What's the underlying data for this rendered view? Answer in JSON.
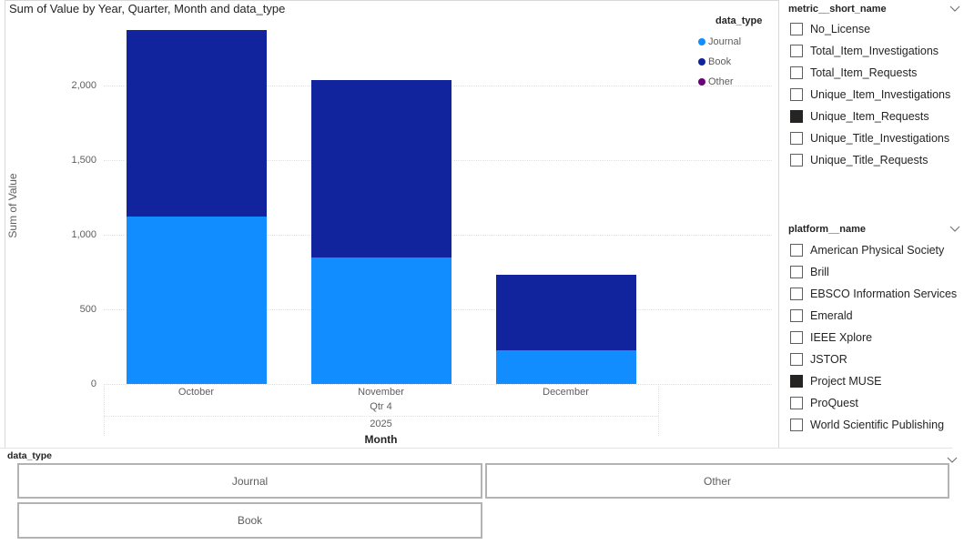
{
  "chart": {
    "title": "Sum of Value by Year, Quarter, Month and data_type",
    "y_axis_title": "Sum of Value",
    "x_axis_title": "Month",
    "quarter_label": "Qtr 4",
    "year_label": "2025",
    "y_ticks": [
      {
        "value": 0,
        "label": "0"
      },
      {
        "value": 500,
        "label": "500"
      },
      {
        "value": 1000,
        "label": "1,000"
      },
      {
        "value": 1500,
        "label": "1,500"
      },
      {
        "value": 2000,
        "label": "2,000"
      }
    ],
    "legend": {
      "title": "data_type",
      "items": [
        {
          "label": "Journal",
          "color": "#118DFF"
        },
        {
          "label": "Book",
          "color": "#12239E"
        },
        {
          "label": "Other",
          "color": "#6B007B"
        }
      ]
    }
  },
  "chart_data": {
    "type": "bar",
    "stacked": true,
    "categories": [
      "October",
      "November",
      "December"
    ],
    "series": [
      {
        "name": "Journal",
        "color": "#118DFF",
        "values": [
          1120,
          850,
          225
        ]
      },
      {
        "name": "Book",
        "color": "#12239E",
        "values": [
          1250,
          1185,
          505
        ]
      },
      {
        "name": "Other",
        "color": "#6B007B",
        "values": [
          0,
          0,
          0
        ]
      }
    ],
    "title": "Sum of Value by Year, Quarter, Month and data_type",
    "xlabel": "Month",
    "ylabel": "Sum of Value",
    "ylim": [
      0,
      2400
    ],
    "x_hierarchy": {
      "quarter": "Qtr 4",
      "year": "2025"
    },
    "grid": "horizontal dotted gridlines every 500",
    "legend_position": "top-right"
  },
  "slicers": {
    "metric": {
      "header": "metric__short_name",
      "items": [
        {
          "label": "No_License",
          "checked": false
        },
        {
          "label": "Total_Item_Investigations",
          "checked": false
        },
        {
          "label": "Total_Item_Requests",
          "checked": false
        },
        {
          "label": "Unique_Item_Investigations",
          "checked": false
        },
        {
          "label": "Unique_Item_Requests",
          "checked": true
        },
        {
          "label": "Unique_Title_Investigations",
          "checked": false
        },
        {
          "label": "Unique_Title_Requests",
          "checked": false
        }
      ]
    },
    "platform": {
      "header": "platform__name",
      "items": [
        {
          "label": "American Physical Society",
          "checked": false
        },
        {
          "label": "Brill",
          "checked": false
        },
        {
          "label": "EBSCO Information Services",
          "checked": false
        },
        {
          "label": "Emerald",
          "checked": false
        },
        {
          "label": "IEEE Xplore",
          "checked": false
        },
        {
          "label": "JSTOR",
          "checked": false
        },
        {
          "label": "Project MUSE",
          "checked": true
        },
        {
          "label": "ProQuest",
          "checked": false
        },
        {
          "label": "World Scientific Publishing",
          "checked": false
        }
      ]
    },
    "data_type": {
      "header": "data_type",
      "buttons": [
        "Journal",
        "Other",
        "Book"
      ]
    }
  },
  "colors": {
    "journal": "#118DFF",
    "book": "#12239E",
    "other": "#6B007B",
    "checked_box": "#252423",
    "axis_text": "#605e5c",
    "tile_border": "#b3b3b3",
    "gridline": "#e1e1e1"
  }
}
